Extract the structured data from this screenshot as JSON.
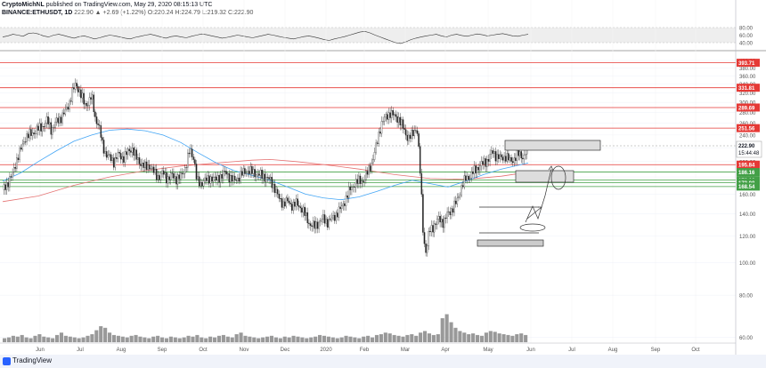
{
  "header": {
    "line1_author": "CryptoMichNL",
    "line1_rest": " published on TradingView.com, May 29, 2020 08:15:13 UTC",
    "symbol": "BINANCE:ETHUSDT, 1D",
    "values": "222.90  ▲ +2.69 (+1.22%)  O:220.24  H:224.79  L:219.32  C:222.90"
  },
  "footer": {
    "brand": "TradingView"
  },
  "colors": {
    "up": "#26a69a",
    "down": "#ef5350",
    "hline": "#e53935",
    "green_line": "#43a047",
    "ma_fast": "#42a5f5",
    "ma_slow": "#e57373",
    "rsi": "#333333"
  },
  "rsi_panel": {
    "ticks": [
      "80.00",
      "60.00",
      "40.00"
    ]
  },
  "chart_data": {
    "type": "candlestick",
    "symbol": "BINANCE:ETHUSDT",
    "interval": "1D",
    "scale": "log",
    "ylim": [
      58,
      420
    ],
    "y_ticks": [
      400,
      380,
      360,
      340,
      320,
      300,
      280,
      260,
      240,
      220,
      200,
      180,
      160,
      140,
      120,
      100,
      80,
      60
    ],
    "x_ticks": [
      "Jun",
      "Jul",
      "Aug",
      "Sep",
      "Oct",
      "Nov",
      "Dec",
      "2020",
      "Feb",
      "Mar",
      "Apr",
      "May",
      "Jun",
      "Jul",
      "Aug",
      "Sep",
      "Oct"
    ],
    "x_tick_pos": [
      45,
      90,
      136,
      182,
      228,
      274,
      320,
      366,
      409,
      455,
      500,
      548,
      596,
      642,
      688,
      736,
      781
    ],
    "horizontal_levels": [
      {
        "price": 393.71,
        "label": "393.71",
        "color": "#e53935"
      },
      {
        "price": 331.81,
        "label": "331.81",
        "color": "#e53935"
      },
      {
        "price": 289.69,
        "label": "289.69",
        "color": "#e53935"
      },
      {
        "price": 251.56,
        "label": "251.56",
        "color": "#e53935"
      },
      {
        "price": 195.84,
        "label": "195.84",
        "color": "#e53935"
      },
      {
        "price": 186.16,
        "label": "186.16",
        "color": "#43a047"
      },
      {
        "price": 176.16,
        "label": "176.16",
        "color": "#43a047"
      },
      {
        "price": 173.08,
        "label": "173.08",
        "color": "#43a047"
      },
      {
        "price": 168.54,
        "label": "168.54",
        "color": "#43a047"
      }
    ],
    "last_price": {
      "price": 222.9,
      "label": "222.90",
      "countdown": "15:44:48"
    },
    "price_path": [
      [
        0,
        165
      ],
      [
        5,
        172
      ],
      [
        10,
        180
      ],
      [
        15,
        200
      ],
      [
        20,
        215
      ],
      [
        25,
        235
      ],
      [
        30,
        240
      ],
      [
        35,
        245
      ],
      [
        40,
        250
      ],
      [
        45,
        255
      ],
      [
        50,
        265
      ],
      [
        55,
        248
      ],
      [
        60,
        262
      ],
      [
        65,
        270
      ],
      [
        70,
        280
      ],
      [
        75,
        300
      ],
      [
        78,
        320
      ],
      [
        82,
        340
      ],
      [
        85,
        330
      ],
      [
        88,
        315
      ],
      [
        92,
        295
      ],
      [
        96,
        300
      ],
      [
        100,
        312
      ],
      [
        104,
        270
      ],
      [
        108,
        255
      ],
      [
        112,
        225
      ],
      [
        116,
        210
      ],
      [
        120,
        205
      ],
      [
        125,
        200
      ],
      [
        130,
        210
      ],
      [
        135,
        205
      ],
      [
        140,
        212
      ],
      [
        145,
        220
      ],
      [
        150,
        205
      ],
      [
        155,
        198
      ],
      [
        160,
        192
      ],
      [
        165,
        195
      ],
      [
        170,
        185
      ],
      [
        175,
        180
      ],
      [
        180,
        185
      ],
      [
        185,
        178
      ],
      [
        190,
        182
      ],
      [
        195,
        178
      ],
      [
        200,
        180
      ],
      [
        205,
        192
      ],
      [
        210,
        215
      ],
      [
        215,
        205
      ],
      [
        218,
        175
      ],
      [
        222,
        170
      ],
      [
        226,
        178
      ],
      [
        230,
        175
      ],
      [
        235,
        180
      ],
      [
        240,
        176
      ],
      [
        245,
        182
      ],
      [
        250,
        185
      ],
      [
        255,
        180
      ],
      [
        260,
        175
      ],
      [
        265,
        180
      ],
      [
        270,
        185
      ],
      [
        275,
        188
      ],
      [
        280,
        186
      ],
      [
        285,
        184
      ],
      [
        290,
        182
      ],
      [
        295,
        180
      ],
      [
        300,
        176
      ],
      [
        305,
        168
      ],
      [
        310,
        155
      ],
      [
        315,
        150
      ],
      [
        320,
        152
      ],
      [
        325,
        148
      ],
      [
        330,
        150
      ],
      [
        335,
        146
      ],
      [
        340,
        138
      ],
      [
        345,
        130
      ],
      [
        350,
        128
      ],
      [
        355,
        132
      ],
      [
        360,
        135
      ],
      [
        365,
        132
      ],
      [
        370,
        135
      ],
      [
        375,
        140
      ],
      [
        380,
        145
      ],
      [
        385,
        155
      ],
      [
        390,
        165
      ],
      [
        395,
        172
      ],
      [
        400,
        175
      ],
      [
        405,
        176
      ],
      [
        410,
        186
      ],
      [
        415,
        200
      ],
      [
        420,
        225
      ],
      [
        425,
        260
      ],
      [
        430,
        270
      ],
      [
        435,
        280
      ],
      [
        440,
        272
      ],
      [
        445,
        268
      ],
      [
        450,
        250
      ],
      [
        455,
        235
      ],
      [
        460,
        240
      ],
      [
        465,
        255
      ],
      [
        468,
        200
      ],
      [
        470,
        160
      ],
      [
        472,
        125
      ],
      [
        474,
        110
      ],
      [
        476,
        108
      ],
      [
        478,
        120
      ],
      [
        480,
        125
      ],
      [
        485,
        130
      ],
      [
        490,
        135
      ],
      [
        495,
        132
      ],
      [
        500,
        140
      ],
      [
        505,
        145
      ],
      [
        510,
        152
      ],
      [
        515,
        168
      ],
      [
        520,
        178
      ],
      [
        525,
        182
      ],
      [
        530,
        188
      ],
      [
        535,
        194
      ],
      [
        540,
        198
      ],
      [
        545,
        203
      ],
      [
        550,
        214
      ],
      [
        555,
        207
      ],
      [
        560,
        204
      ],
      [
        565,
        208
      ],
      [
        570,
        200
      ],
      [
        575,
        205
      ],
      [
        580,
        211
      ],
      [
        585,
        206
      ],
      [
        590,
        222
      ]
    ],
    "ma_fast_path": [
      [
        0,
        175
      ],
      [
        20,
        185
      ],
      [
        40,
        200
      ],
      [
        60,
        215
      ],
      [
        80,
        230
      ],
      [
        100,
        240
      ],
      [
        120,
        248
      ],
      [
        140,
        250
      ],
      [
        160,
        247
      ],
      [
        180,
        240
      ],
      [
        200,
        228
      ],
      [
        220,
        212
      ],
      [
        240,
        198
      ],
      [
        260,
        188
      ],
      [
        280,
        182
      ],
      [
        300,
        176
      ],
      [
        320,
        168
      ],
      [
        340,
        160
      ],
      [
        360,
        156
      ],
      [
        380,
        154
      ],
      [
        400,
        157
      ],
      [
        420,
        163
      ],
      [
        440,
        170
      ],
      [
        460,
        176
      ],
      [
        480,
        172
      ],
      [
        500,
        168
      ],
      [
        520,
        175
      ],
      [
        540,
        183
      ],
      [
        560,
        190
      ],
      [
        590,
        198
      ]
    ],
    "ma_slow_path": [
      [
        0,
        152
      ],
      [
        40,
        158
      ],
      [
        80,
        170
      ],
      [
        120,
        180
      ],
      [
        160,
        188
      ],
      [
        200,
        194
      ],
      [
        240,
        198
      ],
      [
        280,
        202
      ],
      [
        300,
        203
      ],
      [
        330,
        200
      ],
      [
        360,
        196
      ],
      [
        400,
        190
      ],
      [
        440,
        183
      ],
      [
        480,
        178
      ],
      [
        520,
        177
      ],
      [
        560,
        181
      ],
      [
        590,
        186
      ]
    ],
    "volume": [
      5,
      6,
      8,
      7,
      9,
      6,
      5,
      8,
      10,
      7,
      6,
      5,
      9,
      12,
      8,
      7,
      6,
      5,
      6,
      8,
      10,
      15,
      20,
      18,
      12,
      9,
      8,
      7,
      6,
      8,
      9,
      7,
      6,
      5,
      7,
      8,
      6,
      5,
      7,
      6,
      5,
      6,
      8,
      7,
      9,
      6,
      5,
      7,
      6,
      8,
      9,
      7,
      6,
      10,
      12,
      8,
      7,
      6,
      5,
      6,
      7,
      8,
      6,
      5,
      7,
      6,
      8,
      7,
      6,
      5,
      6,
      7,
      9,
      8,
      7,
      6,
      5,
      6,
      8,
      7,
      6,
      5,
      7,
      8,
      6,
      9,
      10,
      12,
      11,
      9,
      8,
      7,
      9,
      10,
      8,
      12,
      14,
      11,
      9,
      10,
      30,
      35,
      25,
      18,
      14,
      12,
      10,
      11,
      9,
      8,
      12,
      14,
      13,
      11,
      10,
      9,
      8,
      10,
      11,
      9
    ],
    "rsi": [
      55,
      58,
      62,
      60,
      57,
      64,
      66,
      63,
      58,
      55,
      60,
      62,
      59,
      55,
      52,
      56,
      58,
      54,
      50,
      53,
      57,
      60,
      58,
      55,
      52,
      50,
      54,
      57,
      60,
      62,
      59,
      55,
      52,
      56,
      58,
      55,
      53,
      57,
      60,
      63,
      61,
      58,
      55,
      52,
      54,
      57,
      60,
      58,
      55,
      53,
      56,
      59,
      62,
      60,
      57,
      54,
      52,
      50,
      53,
      56,
      58,
      55,
      52,
      48,
      46,
      50,
      53,
      56,
      60,
      64,
      68,
      70,
      66,
      60,
      55,
      50,
      45,
      40,
      38,
      42,
      48,
      52,
      55,
      58,
      60,
      62,
      58,
      55,
      60,
      62,
      59,
      57,
      60,
      63,
      61,
      58,
      60,
      62,
      64,
      61,
      58,
      57,
      60,
      62
    ]
  }
}
